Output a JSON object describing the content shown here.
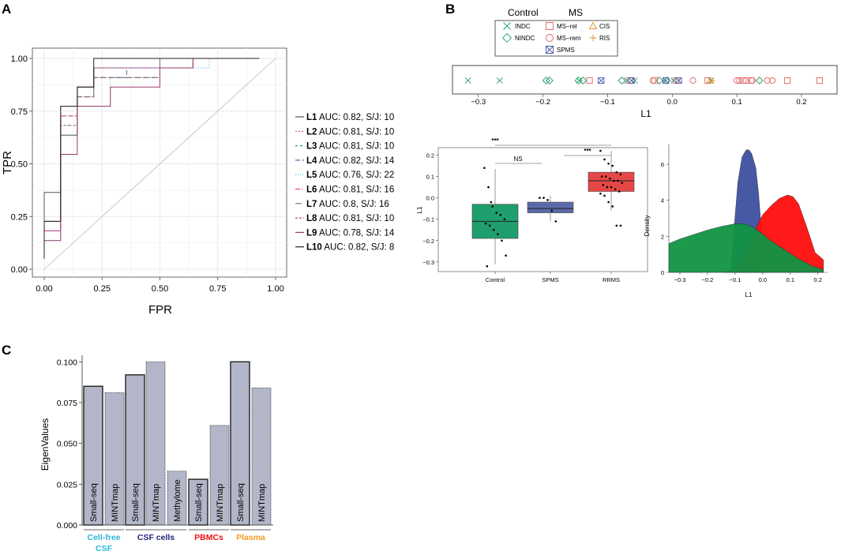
{
  "panel_labels": [
    "A",
    "B",
    "C"
  ],
  "colors": {
    "control": "#1f9e6e",
    "spms": "#4a5aa8",
    "rrms": "#e53030",
    "ms": "#e06060",
    "cis": "#e09020",
    "ris": "#e09020",
    "bar_fill": "#b2b6c8",
    "cellfree": "#2ab6d6",
    "csfcells": "#26237a",
    "pbmc": "#ee1111",
    "plasma": "#f59a23",
    "dens_blue": "#3d4fa0",
    "dens_red": "#ff0d0d",
    "dens_green": "#119444"
  },
  "roc_legend": [
    {
      "key": "L1",
      "text": " AUC: 0.82, S/J: 10"
    },
    {
      "key": "L2",
      "text": " AUC: 0.81, S/J: 10"
    },
    {
      "key": "L3",
      "text": " AUC: 0.81, S/J: 10"
    },
    {
      "key": "L4",
      "text": " AUC: 0.82, S/J: 14"
    },
    {
      "key": "L5",
      "text": " AUC: 0.76, S/J: 22"
    },
    {
      "key": "L6",
      "text": " AUC: 0.81, S/J: 16"
    },
    {
      "key": "L7",
      "text": " AUC: 0.8, S/J: 16"
    },
    {
      "key": "L8",
      "text": " AUC: 0.81, S/J: 10"
    },
    {
      "key": "L9",
      "text": " AUC: 0.78, S/J: 14"
    },
    {
      "key": "L10",
      "text": " AUC: 0.82, S/J: 8"
    }
  ],
  "l1_legend": {
    "control_title": "Control",
    "ms_title": "MS",
    "items": {
      "indc": "INDC",
      "nindc": "NINDC",
      "msrel": "MS−rel",
      "msrem": "MS−rem",
      "spms": "SPMS",
      "cis": "CIS",
      "ris": "RIS"
    }
  },
  "box_sig": {
    "ns": "NS",
    "s1": "***",
    "s2": "***"
  },
  "chart_data": [
    {
      "id": "A",
      "type": "line",
      "title": "",
      "xlabel": "FPR",
      "ylabel": "TPR",
      "xlim": [
        0,
        1
      ],
      "ylim": [
        0,
        1
      ],
      "xticks": [
        "0.00",
        "0.25",
        "0.50",
        "0.75",
        "1.00"
      ],
      "yticks": [
        "0.00",
        "0.25",
        "0.50",
        "0.75",
        "1.00"
      ],
      "grid": true,
      "diagonal": true,
      "series": [
        {
          "name": "L1",
          "color": "#555555",
          "dash": "",
          "x": [
            0,
            0,
            0.071,
            0.071,
            0.143,
            0.143,
            0.214,
            0.214,
            0.5,
            0.5,
            0.929
          ],
          "y": [
            0.05,
            0.364,
            0.364,
            0.636,
            0.636,
            0.864,
            0.864,
            0.955,
            0.955,
            1,
            1
          ]
        },
        {
          "name": "L2",
          "color": "#e8455f",
          "dash": "2,2",
          "x": [
            0,
            0,
            0.071,
            0.071,
            0.143,
            0.143,
            0.214,
            0.214,
            0.5,
            0.5,
            0.857
          ],
          "y": [
            0.1,
            0.227,
            0.227,
            0.682,
            0.682,
            0.864,
            0.864,
            0.955,
            0.955,
            1,
            1
          ]
        },
        {
          "name": "L3",
          "color": "#1a9e6e",
          "dash": "3,3",
          "x": [
            0,
            0,
            0.071,
            0.071,
            0.143,
            0.143,
            0.214,
            0.214,
            0.5,
            0.5,
            0.857
          ],
          "y": [
            0.1,
            0.227,
            0.227,
            0.682,
            0.682,
            0.864,
            0.864,
            0.955,
            0.955,
            1,
            1
          ]
        },
        {
          "name": "L4",
          "color": "#5a6aa8",
          "dash": "6,3",
          "x": [
            0,
            0,
            0.071,
            0.071,
            0.143,
            0.143,
            0.214,
            0.214,
            0.357,
            0.357,
            0.5,
            0.5,
            0.857
          ],
          "y": [
            0.1,
            0.182,
            0.182,
            0.727,
            0.727,
            0.818,
            0.818,
            0.909,
            0.909,
            0.955,
            0.955,
            1,
            1
          ]
        },
        {
          "name": "L5",
          "color": "#2ab6d6",
          "dash": "1,2",
          "x": [
            0,
            0,
            0.071,
            0.071,
            0.143,
            0.143,
            0.286,
            0.286,
            0.5,
            0.5,
            0.714,
            0.714,
            0.857
          ],
          "y": [
            0.1,
            0.136,
            0.136,
            0.636,
            0.636,
            0.773,
            0.773,
            0.909,
            0.909,
            0.955,
            0.955,
            1,
            1
          ]
        },
        {
          "name": "L6",
          "color": "#e8455f",
          "dash": "6,2,1,2",
          "x": [
            0,
            0,
            0.071,
            0.071,
            0.143,
            0.143,
            0.214,
            0.214,
            0.5,
            0.5,
            0.643,
            0.643,
            0.857
          ],
          "y": [
            0.1,
            0.182,
            0.182,
            0.727,
            0.727,
            0.818,
            0.818,
            0.909,
            0.909,
            0.955,
            0.955,
            1,
            1
          ]
        },
        {
          "name": "L7",
          "color": "#777777",
          "dash": "8,3",
          "x": [
            0,
            0,
            0.071,
            0.071,
            0.143,
            0.143,
            0.214,
            0.214,
            0.5,
            0.5,
            0.643,
            0.643,
            0.857
          ],
          "y": [
            0.1,
            0.227,
            0.227,
            0.636,
            0.636,
            0.818,
            0.818,
            0.909,
            0.909,
            0.955,
            0.955,
            1,
            1
          ]
        },
        {
          "name": "L8",
          "color": "#c04a8c",
          "dash": "3,2",
          "x": [
            0,
            0,
            0.071,
            0.071,
            0.143,
            0.143,
            0.214,
            0.214,
            0.5,
            0.5,
            0.857
          ],
          "y": [
            0.1,
            0.182,
            0.182,
            0.773,
            0.773,
            0.864,
            0.864,
            0.955,
            0.955,
            1,
            1
          ]
        },
        {
          "name": "L9",
          "color": "#9a3a6a",
          "dash": "",
          "x": [
            0,
            0,
            0.071,
            0.071,
            0.143,
            0.143,
            0.286,
            0.286,
            0.5,
            0.5,
            0.643,
            0.643,
            0.857
          ],
          "y": [
            0.1,
            0.136,
            0.136,
            0.545,
            0.545,
            0.773,
            0.773,
            0.864,
            0.864,
            0.955,
            0.955,
            1,
            1
          ]
        },
        {
          "name": "L10",
          "color": "#222222",
          "dash": "",
          "x": [
            0,
            0,
            0.071,
            0.071,
            0.143,
            0.143,
            0.214,
            0.214,
            0.929
          ],
          "y": [
            0.05,
            0.227,
            0.227,
            0.773,
            0.773,
            0.864,
            0.864,
            1,
            1
          ]
        }
      ]
    },
    {
      "id": "B-strip",
      "type": "scatter",
      "xlabel": "L1",
      "xlim": [
        -0.34,
        0.255
      ],
      "xticks": [
        -0.3,
        -0.2,
        -0.1,
        0.0,
        0.1,
        0.2
      ],
      "xtick_labels": [
        "−0.3",
        "−0.2",
        "−0.1",
        "0.0",
        "0.1",
        "0.2"
      ],
      "points": [
        {
          "g": "indc",
          "x": -0.316
        },
        {
          "g": "indc",
          "x": -0.267
        },
        {
          "g": "indc",
          "x": -0.144
        },
        {
          "g": "indc",
          "x": -0.07
        },
        {
          "g": "indc",
          "x": -0.058
        },
        {
          "g": "indc",
          "x": 0.002
        },
        {
          "g": "indc",
          "x": 0.06
        },
        {
          "g": "nindc",
          "x": -0.195
        },
        {
          "g": "nindc",
          "x": -0.19
        },
        {
          "g": "nindc",
          "x": -0.145
        },
        {
          "g": "nindc",
          "x": -0.138
        },
        {
          "g": "nindc",
          "x": -0.078
        },
        {
          "g": "nindc",
          "x": -0.02
        },
        {
          "g": "nindc",
          "x": -0.008
        },
        {
          "g": "nindc",
          "x": 0.135
        },
        {
          "g": "msrel",
          "x": -0.128
        },
        {
          "g": "msrel",
          "x": -0.066
        },
        {
          "g": "msrel",
          "x": -0.027
        },
        {
          "g": "msrel",
          "x": 0.006
        },
        {
          "g": "msrel",
          "x": 0.055
        },
        {
          "g": "msrel",
          "x": 0.11
        },
        {
          "g": "msrel",
          "x": 0.122
        },
        {
          "g": "msrel",
          "x": 0.178
        },
        {
          "g": "msrel",
          "x": 0.228
        },
        {
          "g": "msrem",
          "x": -0.03
        },
        {
          "g": "msrem",
          "x": 0.032
        },
        {
          "g": "msrem",
          "x": 0.1
        },
        {
          "g": "msrem",
          "x": 0.104
        },
        {
          "g": "msrem",
          "x": 0.114
        },
        {
          "g": "msrem",
          "x": 0.124
        },
        {
          "g": "msrem",
          "x": 0.147
        },
        {
          "g": "msrem",
          "x": 0.155
        },
        {
          "g": "spms",
          "x": -0.11
        },
        {
          "g": "spms",
          "x": -0.063
        },
        {
          "g": "spms",
          "x": -0.01
        },
        {
          "g": "spms",
          "x": 0.01
        },
        {
          "g": "cis",
          "x": 0.058
        },
        {
          "g": "ris",
          "x": 0.062
        }
      ]
    },
    {
      "id": "B-box",
      "type": "box",
      "ylabel": "L1",
      "categories": [
        "Control",
        "SPMS",
        "RRMS"
      ],
      "ylim": [
        -0.345,
        0.235
      ],
      "yticks": [
        -0.3,
        -0.2,
        -0.1,
        0.0,
        0.1,
        0.2
      ],
      "ytick_labels": [
        "−0.3",
        "−0.2",
        "−0.1",
        "0.0",
        "0.1",
        "0.2"
      ],
      "boxes": [
        {
          "name": "Control",
          "q1": -0.19,
          "median": -0.11,
          "q3": -0.03,
          "lo": -0.31,
          "hi": 0.135,
          "color": "#1f9e6e",
          "points": [
            0.14,
            0.05,
            -0.04,
            -0.07,
            -0.08,
            -0.1,
            -0.12,
            -0.13,
            -0.15,
            -0.17,
            -0.2,
            -0.27,
            -0.32,
            -0.02
          ]
        },
        {
          "name": "SPMS",
          "q1": -0.07,
          "median": -0.05,
          "q3": -0.02,
          "lo": -0.11,
          "hi": 0.01,
          "color": "#5a6aa8",
          "points": [
            0.0,
            0.0,
            -0.01,
            -0.06,
            -0.11
          ]
        },
        {
          "name": "RRMS",
          "q1": 0.03,
          "median": 0.08,
          "q3": 0.12,
          "lo": -0.06,
          "hi": 0.22,
          "color": "#e64848",
          "points": [
            0.22,
            0.18,
            0.16,
            0.15,
            0.12,
            0.11,
            0.1,
            0.1,
            0.09,
            0.08,
            0.08,
            0.07,
            0.06,
            0.05,
            0.05,
            0.04,
            0.03,
            0.02,
            0.01,
            -0.02,
            -0.04,
            -0.13,
            -0.13
          ]
        }
      ]
    },
    {
      "id": "B-density",
      "type": "area",
      "xlabel": "L1",
      "ylabel": "Density",
      "xlim": [
        -0.34,
        0.235
      ],
      "xticks": [
        -0.3,
        -0.2,
        -0.1,
        0.0,
        0.1,
        0.2
      ],
      "xtick_labels": [
        "−0.3",
        "−0.2",
        "−0.1",
        "0.0",
        "0.1",
        "0.2"
      ],
      "ylim": [
        0,
        7.1
      ],
      "yticks": [
        0,
        2,
        4,
        6
      ],
      "series": [
        {
          "name": "SPMS",
          "color": "#3d4fa0",
          "x": [
            -0.115,
            -0.105,
            -0.09,
            -0.075,
            -0.06,
            -0.05,
            -0.04,
            -0.025,
            -0.015,
            -0.005,
            0.005,
            0.012
          ],
          "y": [
            0,
            2.2,
            5.0,
            6.4,
            6.8,
            6.8,
            6.6,
            5.8,
            4.4,
            2.4,
            0.8,
            0
          ]
        },
        {
          "name": "RRMS",
          "color": "#ff0d0d",
          "x": [
            -0.14,
            -0.1,
            -0.07,
            -0.04,
            -0.02,
            0,
            0.03,
            0.06,
            0.09,
            0.11,
            0.13,
            0.16,
            0.19,
            0.22
          ],
          "y": [
            0,
            0.25,
            0.8,
            1.8,
            2.6,
            3.2,
            3.7,
            4.1,
            4.3,
            4.2,
            3.8,
            2.5,
            1.1,
            0.7
          ]
        },
        {
          "name": "Control",
          "color": "#119444",
          "x": [
            -0.34,
            -0.3,
            -0.25,
            -0.2,
            -0.15,
            -0.1,
            -0.07,
            -0.04,
            -0.01,
            0.03,
            0.08,
            0.13,
            0.18,
            0.22
          ],
          "y": [
            1.6,
            1.85,
            2.1,
            2.35,
            2.55,
            2.7,
            2.7,
            2.55,
            2.25,
            1.75,
            1.25,
            0.75,
            0.35,
            0.15
          ]
        }
      ]
    },
    {
      "id": "C",
      "type": "bar",
      "ylabel": "EigenValues",
      "ylim": [
        0,
        0.104
      ],
      "yticks": [
        0,
        0.025,
        0.05,
        0.075,
        0.1
      ],
      "ytick_labels": [
        "0.000",
        "0.025",
        "0.050",
        "0.075",
        "0.100"
      ],
      "categories": [
        "Small-seq",
        "MINTmap",
        "Small-seq",
        "MINTmap",
        "Methylome",
        "Small-seq",
        "MINTmap",
        "Small-seq",
        "MINTmap"
      ],
      "values": [
        0.085,
        0.081,
        0.092,
        0.1,
        0.033,
        0.028,
        0.061,
        0.1,
        0.084
      ],
      "borders": [
        "solid",
        "dotted",
        "solid",
        "dotted",
        "dotted",
        "solid",
        "dotted",
        "solid",
        "dotted"
      ],
      "groups": [
        {
          "label": "Cell-free",
          "label2": "CSF",
          "start": 0,
          "end": 1,
          "color": "#2ab6d6"
        },
        {
          "label": "CSF cells",
          "start": 2,
          "end": 4,
          "color": "#26237a"
        },
        {
          "label": "PBMCs",
          "start": 5,
          "end": 6,
          "color": "#ee1111"
        },
        {
          "label": "Plasma",
          "start": 7,
          "end": 8,
          "color": "#f59a23"
        }
      ]
    }
  ]
}
